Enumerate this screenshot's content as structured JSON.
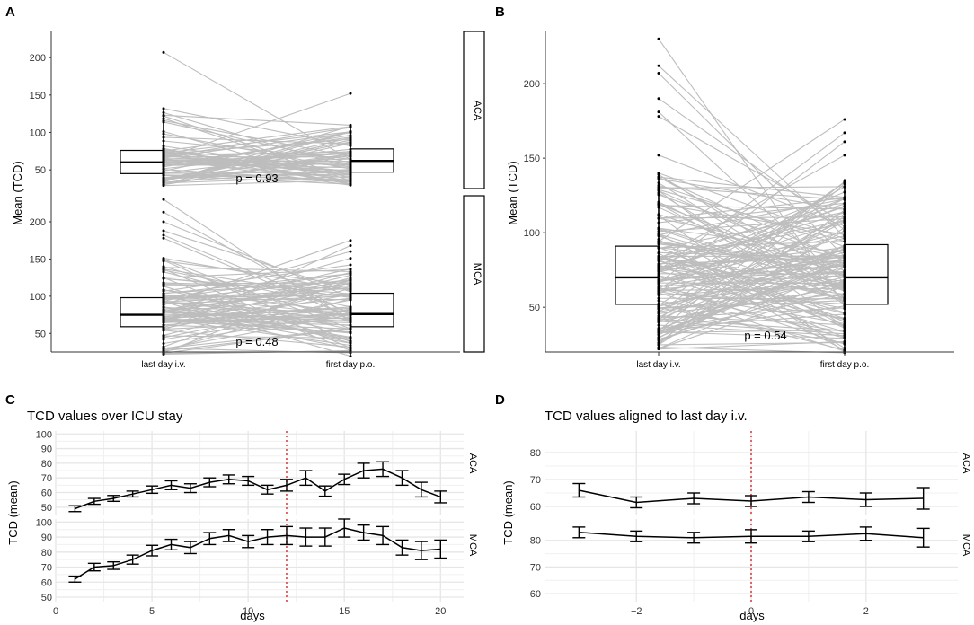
{
  "panel_labels": {
    "a": "A",
    "b": "B",
    "c": "C",
    "d": "D"
  },
  "colors": {
    "line": "#000000",
    "paired_lines": "#bdbdbd",
    "grid": "#e6e6e6",
    "reference_line": "#d62728",
    "background": "#ffffff"
  },
  "chart_data": [
    {
      "panel": "A",
      "type": "box",
      "ylabel": "Mean (TCD)",
      "categories": [
        "last day i.v.",
        "first day p.o."
      ],
      "facets": [
        {
          "strip": "ACA",
          "p_label": "p = 0.93",
          "ylim": [
            25,
            235
          ],
          "yticks": [
            50,
            100,
            150,
            200
          ],
          "boxes": [
            {
              "q1": 45,
              "median": 60,
              "q3": 76
            },
            {
              "q1": 47,
              "median": 62,
              "q3": 78
            }
          ],
          "whiskers": [
            [
              29,
              132
            ],
            [
              28,
              110
            ]
          ],
          "outliers_high": [
            [
              207
            ],
            [
              152
            ]
          ],
          "pairs_n": 70
        },
        {
          "strip": "MCA",
          "p_label": "p = 0.48",
          "ylim": [
            25,
            235
          ],
          "yticks": [
            50,
            100,
            150,
            200
          ],
          "boxes": [
            {
              "q1": 59,
              "median": 75,
              "q3": 98
            },
            {
              "q1": 59,
              "median": 76,
              "q3": 104
            }
          ],
          "whiskers": [
            [
              22,
              151
            ],
            [
              19,
              137
            ]
          ],
          "outliers_high": [
            [
              230,
              213,
              200,
              188,
              182,
              178
            ],
            [
              175,
              168,
              160,
              151,
              142
            ]
          ],
          "pairs_n": 90
        }
      ]
    },
    {
      "panel": "B",
      "type": "box",
      "ylabel": "Mean (TCD)",
      "categories": [
        "last day i.v.",
        "first day p.o."
      ],
      "p_label": "p = 0.54",
      "ylim": [
        20,
        235
      ],
      "yticks": [
        50,
        100,
        150,
        200
      ],
      "boxes": [
        {
          "q1": 52,
          "median": 70,
          "q3": 91
        },
        {
          "q1": 52,
          "median": 70,
          "q3": 92
        }
      ],
      "whiskers": [
        [
          22,
          140
        ],
        [
          19,
          136
        ]
      ],
      "outliers_high": [
        [
          230,
          212,
          207,
          190,
          181,
          178,
          152
        ],
        [
          176,
          167,
          161,
          152
        ]
      ],
      "pairs_n": 150
    },
    {
      "panel": "C",
      "type": "line",
      "title": "TCD values over ICU stay",
      "xlabel": "days",
      "ylabel": "TCD (mean)",
      "xlim": [
        0,
        21.2
      ],
      "xticks": [
        0,
        5,
        10,
        15,
        20
      ],
      "reference_x": 12,
      "facets": [
        {
          "strip": "ACA",
          "ylim": [
            45,
            102
          ],
          "yticks": [
            50,
            60,
            70,
            80,
            90,
            100
          ],
          "x": [
            1,
            2,
            3,
            4,
            5,
            6,
            7,
            8,
            9,
            10,
            11,
            12,
            13,
            14,
            15,
            16,
            17,
            18,
            19,
            20
          ],
          "mean": [
            49,
            54,
            56,
            59,
            62,
            65,
            63,
            67,
            69,
            68,
            62,
            65,
            70,
            61,
            69,
            75,
            76,
            70,
            62,
            57
          ],
          "err": [
            2,
            2,
            2,
            2,
            2.5,
            3,
            3,
            3,
            3,
            3,
            3,
            4,
            5,
            3.5,
            3.5,
            5,
            5,
            5,
            5,
            4
          ]
        },
        {
          "strip": "MCA",
          "ylim": [
            47,
            102
          ],
          "yticks": [
            50,
            60,
            70,
            80,
            90,
            100
          ],
          "x": [
            1,
            2,
            3,
            4,
            5,
            6,
            7,
            8,
            9,
            10,
            11,
            12,
            13,
            14,
            15,
            16,
            17,
            18,
            19,
            20
          ],
          "mean": [
            62,
            70,
            71,
            75,
            81,
            85,
            83,
            89,
            91,
            87,
            90,
            91,
            90,
            90,
            96,
            93,
            91,
            83,
            81,
            82
          ],
          "err": [
            2,
            2.5,
            2.5,
            3,
            3.5,
            3.5,
            4,
            4,
            4,
            4,
            5,
            6,
            6,
            6,
            6,
            5,
            6,
            5,
            6,
            6
          ]
        }
      ]
    },
    {
      "panel": "D",
      "type": "line",
      "title": "TCD values aligned to last day i.v.",
      "xlabel": "days",
      "ylabel": "TCD (mean)",
      "xlim": [
        -3.6,
        3.6
      ],
      "xticks": [
        -2,
        0,
        2
      ],
      "xtick_labels": [
        "−2",
        "0",
        "2"
      ],
      "reference_x": 0,
      "facets": [
        {
          "strip": "ACA",
          "ylim": [
            57,
            88
          ],
          "yticks": [
            60,
            70,
            80
          ],
          "x": [
            -3,
            -2,
            -1,
            0,
            1,
            2,
            3
          ],
          "mean": [
            66,
            61.5,
            63,
            62,
            63.5,
            62.5,
            63
          ],
          "err": [
            2.5,
            2,
            2,
            2,
            2,
            2.5,
            4
          ]
        },
        {
          "strip": "MCA",
          "ylim": [
            57,
            88
          ],
          "yticks": [
            60,
            70,
            80
          ],
          "x": [
            -3,
            -2,
            -1,
            0,
            1,
            2,
            3
          ],
          "mean": [
            83,
            81.5,
            81,
            81.5,
            81.5,
            82.5,
            81
          ],
          "err": [
            2,
            2,
            2,
            2.5,
            2,
            2.5,
            3.5
          ]
        }
      ]
    }
  ]
}
